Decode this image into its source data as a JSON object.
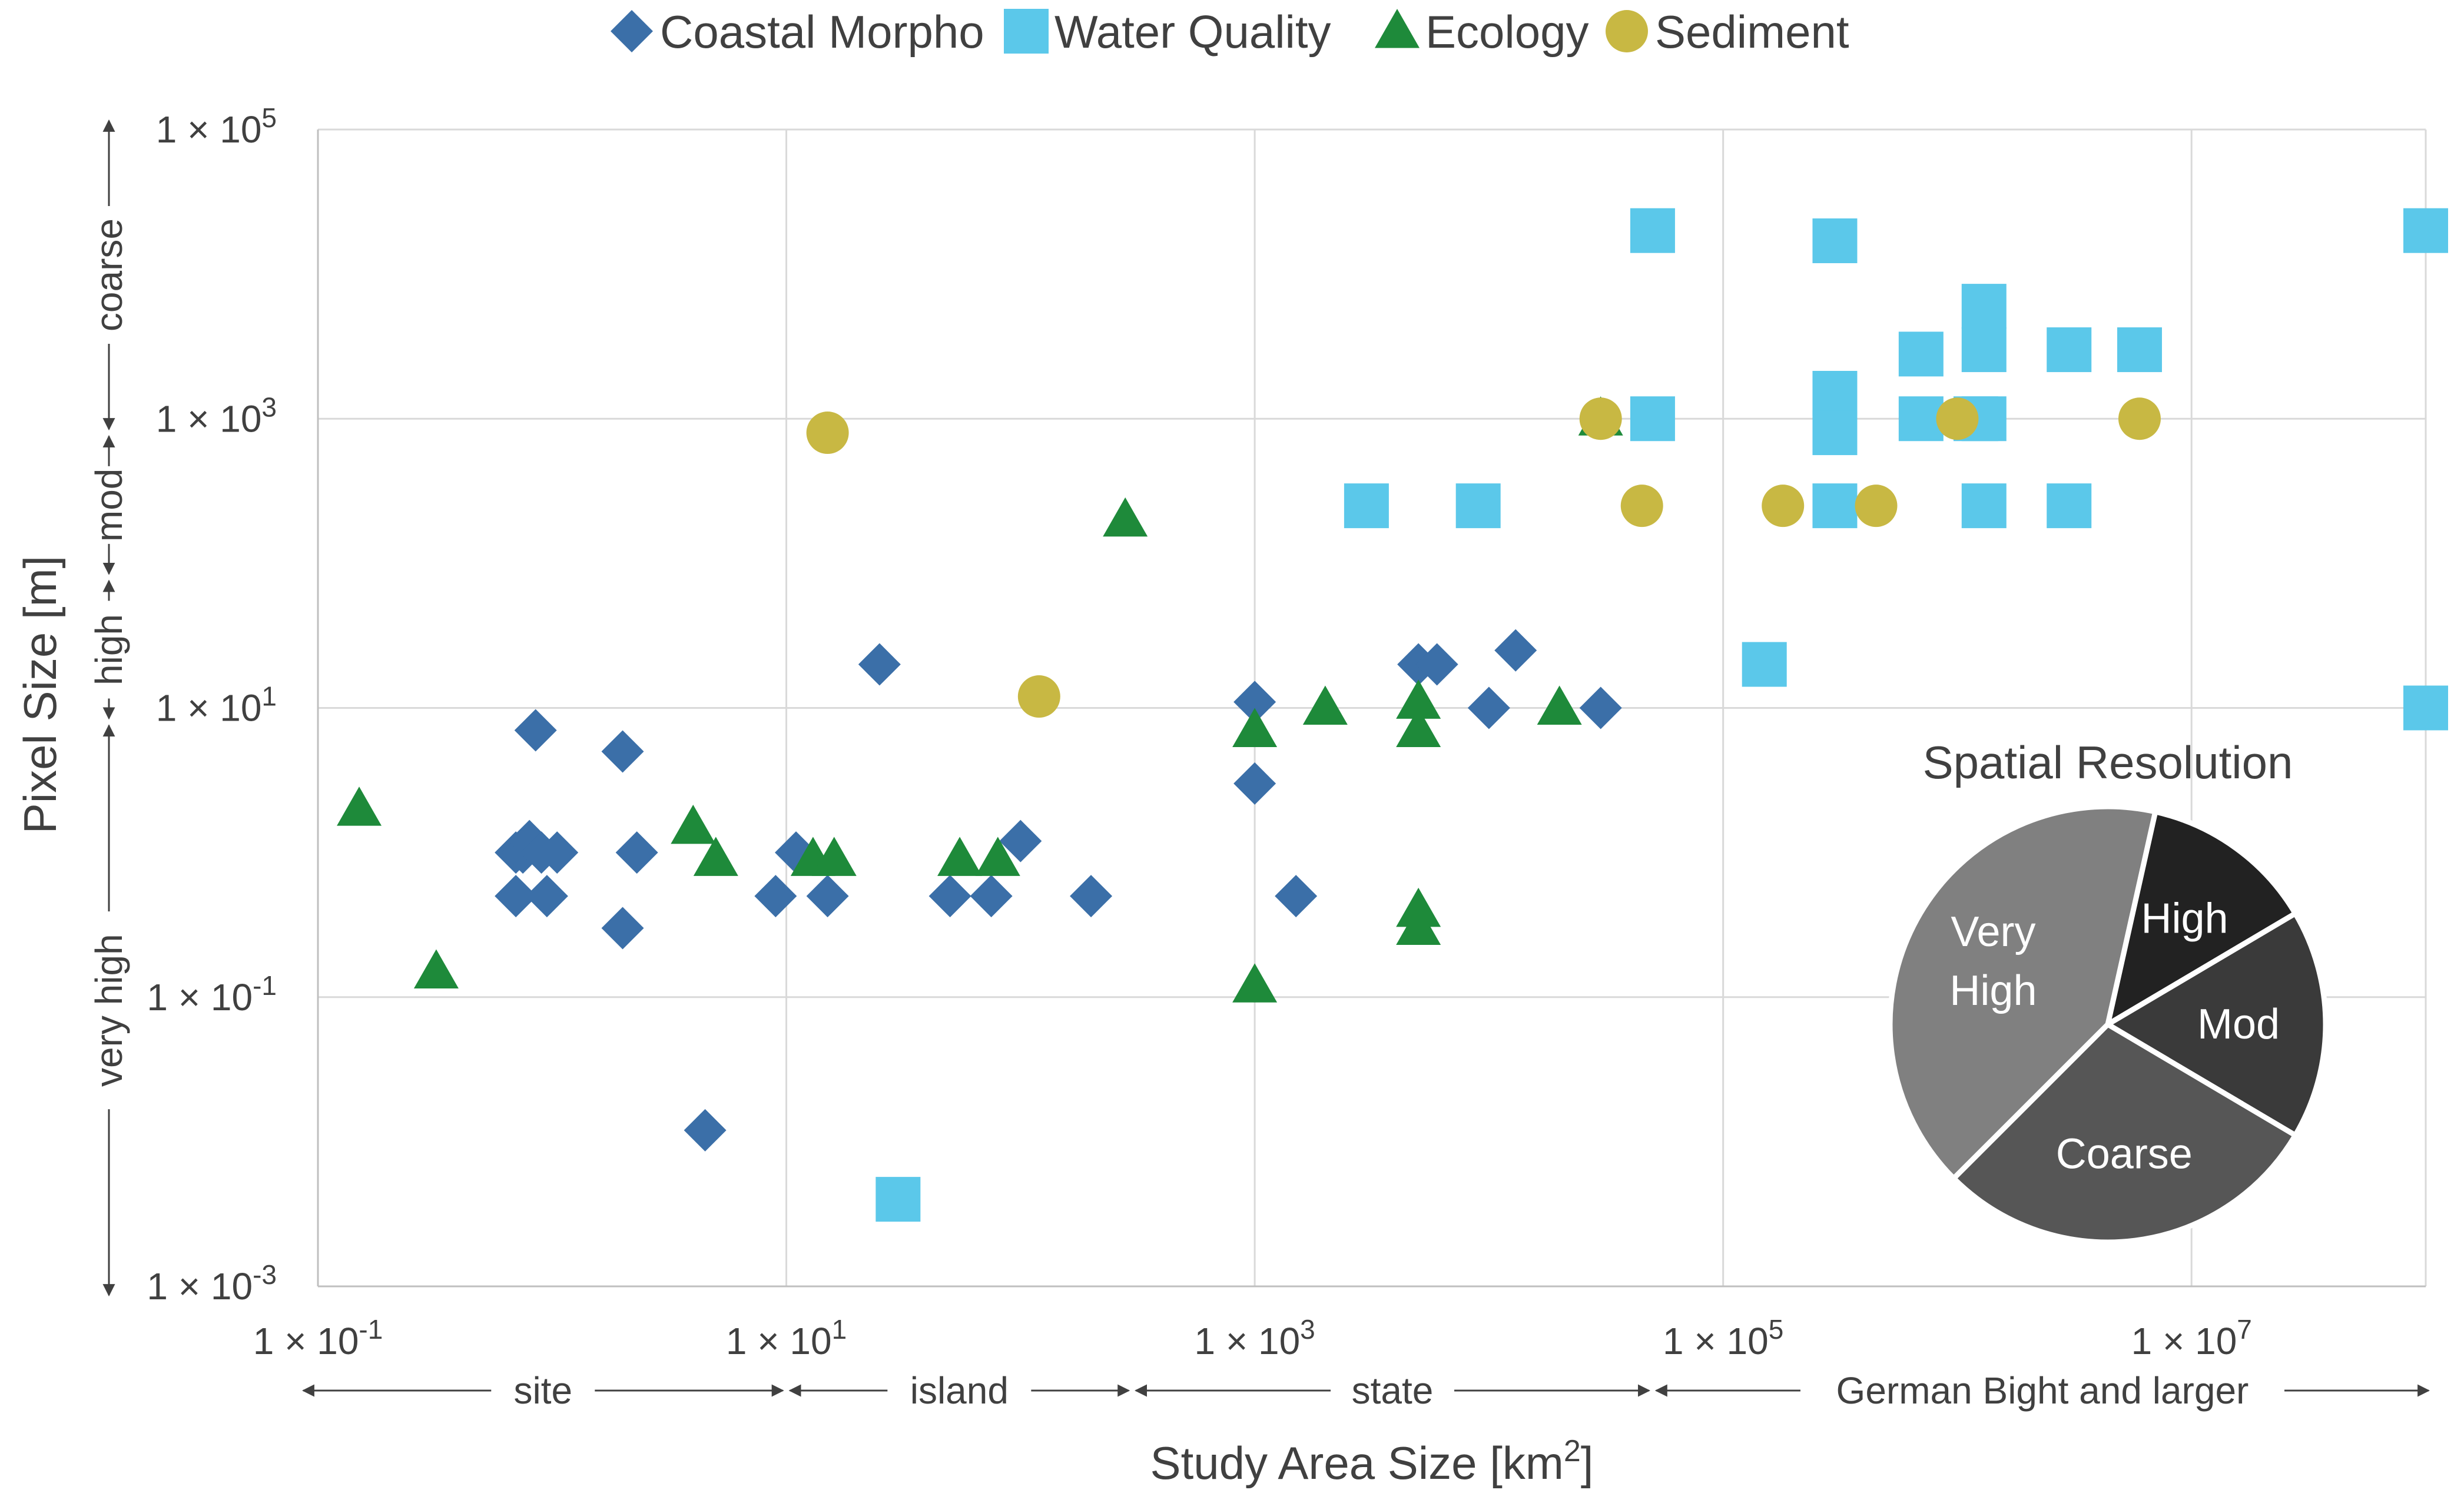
{
  "chart_data": [
    {
      "type": "scatter",
      "xlabel": "Study Area Size [km",
      "xlabel_sup": "2",
      "xlabel_end": "]",
      "ylabel": "Pixel Size [m]",
      "x_scale": "log",
      "y_scale": "log",
      "xlim": [
        0.1,
        100000000
      ],
      "ylim": [
        0.001,
        100000
      ],
      "x_ticks": [
        {
          "value": 0.1,
          "base": "1 × 10",
          "exp": "-1"
        },
        {
          "value": 10,
          "base": "1 × 10",
          "exp": "1"
        },
        {
          "value": 1000,
          "base": "1 × 10",
          "exp": "3"
        },
        {
          "value": 100000,
          "base": "1 × 10",
          "exp": "5"
        },
        {
          "value": 10000000,
          "base": "1 × 10",
          "exp": "7"
        }
      ],
      "y_ticks": [
        {
          "value": 0.001,
          "base": "1 × 10",
          "exp": "-3"
        },
        {
          "value": 0.1,
          "base": "1 × 10",
          "exp": "-1"
        },
        {
          "value": 10,
          "base": "1 × 10",
          "exp": "1"
        },
        {
          "value": 1000,
          "base": "1 × 10",
          "exp": "3"
        },
        {
          "value": 100000,
          "base": "1 × 10",
          "exp": "5"
        }
      ],
      "grid": true,
      "legend_position": "top",
      "x_bands": [
        {
          "label": "site",
          "from": 0.1,
          "to": 10
        },
        {
          "label": "island",
          "from": 10,
          "to": 300
        },
        {
          "label": "state",
          "from": 300,
          "to": 50000
        },
        {
          "label": "German Bight and larger",
          "from": 50000,
          "to": 100000000
        }
      ],
      "y_bands": [
        {
          "label": "very high",
          "from": 0.001,
          "to": 8
        },
        {
          "label": "high",
          "from": 8,
          "to": 80
        },
        {
          "label": "mod",
          "from": 80,
          "to": 800
        },
        {
          "label": "coarse",
          "from": 800,
          "to": 100000
        }
      ],
      "series": [
        {
          "name": "Coastal Morpho",
          "marker": "diamond",
          "color": "#3B6FA8",
          "points": [
            [
              0.7,
              0.5
            ],
            [
              0.7,
              1
            ],
            [
              0.75,
              1
            ],
            [
              0.8,
              1.2
            ],
            [
              0.85,
              7
            ],
            [
              0.9,
              1
            ],
            [
              0.95,
              0.5
            ],
            [
              1.05,
              1
            ],
            [
              2,
              5
            ],
            [
              2,
              0.3
            ],
            [
              2.3,
              1
            ],
            [
              4.5,
              0.012
            ],
            [
              9,
              0.5
            ],
            [
              11,
              1
            ],
            [
              15,
              0.5
            ],
            [
              25,
              20
            ],
            [
              50,
              0.5
            ],
            [
              75,
              0.5
            ],
            [
              100,
              1.2
            ],
            [
              200,
              0.5
            ],
            [
              1000,
              11
            ],
            [
              1000,
              3
            ],
            [
              1500,
              0.5
            ],
            [
              5000,
              20
            ],
            [
              6000,
              20
            ],
            [
              10000,
              10
            ],
            [
              13000,
              25
            ],
            [
              30000,
              10
            ]
          ]
        },
        {
          "name": "Water Quality",
          "marker": "square",
          "color": "#5BC8EA",
          "points": [
            [
              30,
              0.004
            ],
            [
              3000,
              250
            ],
            [
              9000,
              250
            ],
            [
              50000,
              20000
            ],
            [
              50000,
              1000
            ],
            [
              150000,
              20
            ],
            [
              300000,
              17000
            ],
            [
              300000,
              1500
            ],
            [
              300000,
              800
            ],
            [
              300000,
              250
            ],
            [
              700000,
              2800
            ],
            [
              700000,
              1000
            ],
            [
              1200000,
              1000
            ],
            [
              1300000,
              6000
            ],
            [
              1300000,
              3000
            ],
            [
              1300000,
              1000
            ],
            [
              1300000,
              250
            ],
            [
              3000000,
              3000
            ],
            [
              3000000,
              250
            ],
            [
              6000000,
              3000
            ],
            [
              100000000,
              20000
            ],
            [
              100000000,
              10
            ]
          ]
        },
        {
          "name": "Ecology",
          "marker": "triangle",
          "color": "#1E8A3A",
          "points": [
            [
              0.15,
              2
            ],
            [
              0.32,
              0.15
            ],
            [
              4,
              1.5
            ],
            [
              5,
              0.9
            ],
            [
              13,
              0.9
            ],
            [
              16,
              0.9
            ],
            [
              55,
              0.9
            ],
            [
              80,
              0.9
            ],
            [
              280,
              200
            ],
            [
              1000,
              7
            ],
            [
              1000,
              0.12
            ],
            [
              2000,
              10
            ],
            [
              5000,
              11
            ],
            [
              5000,
              7
            ],
            [
              5000,
              0.4
            ],
            [
              5000,
              0.3
            ],
            [
              20000,
              10
            ],
            [
              30000,
              1000
            ]
          ]
        },
        {
          "name": "Sediment",
          "marker": "circle",
          "color": "#C8B843",
          "points": [
            [
              15,
              800
            ],
            [
              120,
              12
            ],
            [
              30000,
              1000
            ],
            [
              45000,
              250
            ],
            [
              180000,
              250
            ],
            [
              450000,
              250
            ],
            [
              1000000,
              1000
            ],
            [
              6000000,
              1000
            ]
          ]
        }
      ]
    },
    {
      "type": "pie",
      "title": "Spatial Resolution",
      "slices": [
        {
          "label": "High",
          "value": 13,
          "color": "#222222"
        },
        {
          "label": "Mod",
          "value": 17,
          "color": "#3A3A3A"
        },
        {
          "label": "Coarse",
          "value": 29,
          "color": "#565656"
        },
        {
          "label": "Very",
          "label2": "High",
          "value": 41,
          "color": "#808080"
        }
      ]
    }
  ]
}
